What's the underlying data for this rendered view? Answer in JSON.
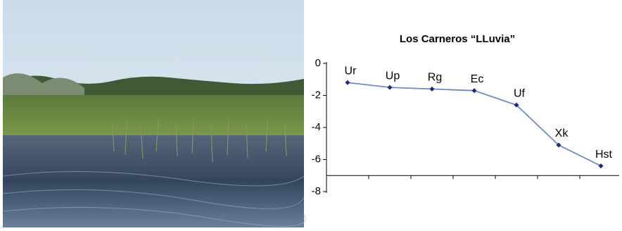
{
  "chart_data": {
    "type": "line",
    "title": "Los Carneros “LLuvia”",
    "categories": [
      "Ur",
      "Up",
      "Rg",
      "Ec",
      "Uf",
      "Xk",
      "Hst"
    ],
    "values": [
      -1.2,
      -1.5,
      -1.6,
      -1.7,
      -2.6,
      -5.1,
      -6.4
    ],
    "color": "#6d8cc4",
    "marker_color": "#1f2a78",
    "ylim": [
      -8,
      0
    ],
    "yticks": [
      0,
      -2,
      -4,
      -6,
      -8
    ],
    "xaxis_crosses": -7
  }
}
